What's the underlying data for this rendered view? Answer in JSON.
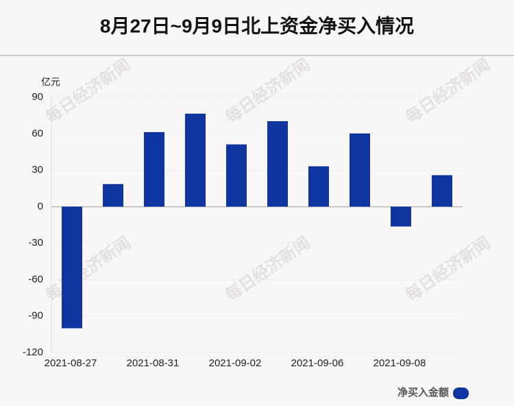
{
  "chart_data": {
    "type": "bar",
    "title": "8月27日~9月9日北上资金净买入情况",
    "y_unit": "亿元",
    "watermark": "每日经济新闻",
    "categories": [
      "2021-08-27",
      null,
      "2021-08-31",
      null,
      "2021-09-02",
      null,
      "2021-09-06",
      null,
      "2021-09-08",
      null
    ],
    "series": [
      {
        "name": "净买入金额",
        "color": "#0e35a0",
        "values": [
          -100,
          18.6,
          61.3,
          76.5,
          51.2,
          70.3,
          33.2,
          60.2,
          -16.3,
          25.9
        ]
      }
    ],
    "ylim": [
      -120,
      90
    ],
    "yticks": [
      -120,
      -90,
      -60,
      -30,
      0,
      30,
      60,
      90
    ],
    "grid": true,
    "legend": "bottom-right"
  }
}
